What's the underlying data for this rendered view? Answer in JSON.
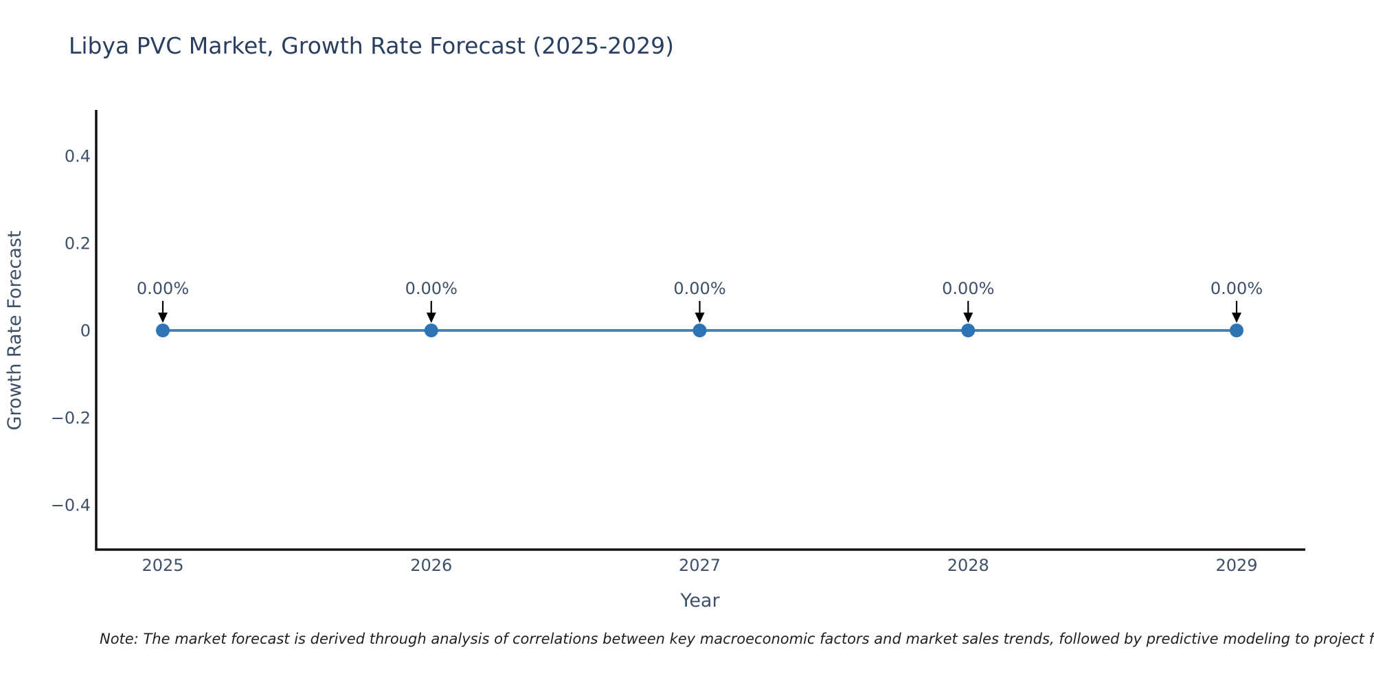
{
  "chart_data": {
    "type": "line",
    "title": "Libya PVC Market, Growth Rate Forecast (2025-2029)",
    "xlabel": "Year",
    "ylabel": "Growth Rate Forecast",
    "x": [
      2025,
      2026,
      2027,
      2028,
      2029
    ],
    "series": [
      {
        "name": "Growth Rate Forecast",
        "values": [
          0,
          0,
          0,
          0,
          0
        ]
      }
    ],
    "point_labels": [
      "0.00%",
      "0.00%",
      "0.00%",
      "0.00%",
      "0.00%"
    ],
    "xtick_labels": [
      "2025",
      "2026",
      "2027",
      "2028",
      "2029"
    ],
    "ytick_values": [
      0.4,
      0.2,
      0,
      -0.2,
      -0.4
    ],
    "ytick_labels": [
      "0.4",
      "0.2",
      "0",
      "−0.2",
      "−0.4"
    ],
    "ylim": [
      -0.5,
      0.51
    ],
    "grid": false,
    "legend_position": "none",
    "colors": {
      "line": "#4e80b0",
      "marker": "#2d74b5",
      "axis": "#111111",
      "tick_text": "#3d5068",
      "title_text": "#2a3f5f",
      "arrow": "#000000",
      "note_text": "#1f1f1f",
      "background": "#ffffff"
    },
    "note": "Note: The market forecast is derived through analysis of correlations between key macroeconomic factors and market sales trends, followed by predictive modeling to project future sales."
  }
}
